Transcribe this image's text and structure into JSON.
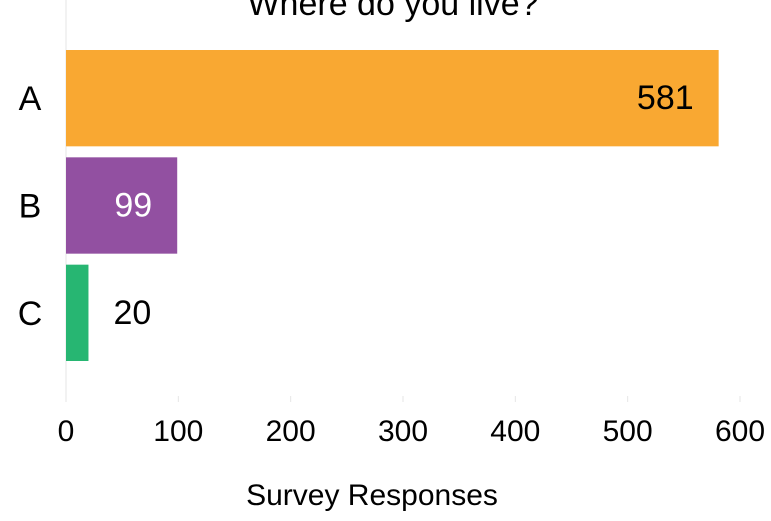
{
  "chart_data": {
    "type": "hbar",
    "title": "Where do you live?",
    "categories": [
      "A",
      "B",
      "C"
    ],
    "values": [
      581,
      99,
      20
    ],
    "colors": [
      "#f9a832",
      "#9250a1",
      "#27b672"
    ],
    "value_label_colors": [
      "#000000",
      "#ffffff",
      "#000000"
    ],
    "xlabel": "Survey Responses",
    "xlim": [
      0,
      600
    ],
    "xticks": [
      0,
      100,
      200,
      300,
      400,
      500,
      600
    ]
  }
}
